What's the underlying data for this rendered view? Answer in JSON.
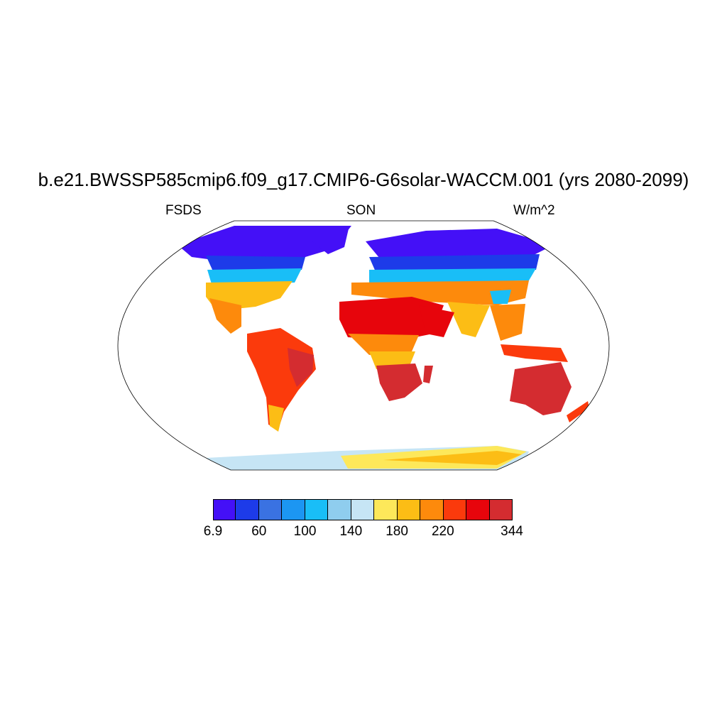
{
  "title": "b.e21.BWSSP585cmip6.f09_g17.CMIP6-G6solar-WACCM.001 (yrs 2080-2099)",
  "left_string": "FSDS",
  "center_string": "SON",
  "right_string": "W/m^2",
  "colorbar": {
    "colors": [
      "#4410f7",
      "#1d3be9",
      "#3a72e2",
      "#1c96f2",
      "#19bef7",
      "#8fcdee",
      "#c6e5f5",
      "#fde85a",
      "#fcbd15",
      "#fd8a0c",
      "#fb3a0c",
      "#e7050c",
      "#d42c30"
    ],
    "tick_labels": [
      "6.9",
      "60",
      "100",
      "140",
      "180",
      "220",
      "344"
    ]
  },
  "map": {
    "projection": "Robinson",
    "land_colors": {
      "arctic": "#4410f7",
      "high_lat": "#1d3be9",
      "mid_high": "#19bef7",
      "temperate": "#fcbd15",
      "subtropic": "#fd8a0c",
      "tropic": "#fb3a0c",
      "desert": "#e7050c",
      "peak": "#d42c30",
      "antarctic_coast": "#c6e5f5",
      "antarctic_interior": "#fde85a"
    }
  }
}
